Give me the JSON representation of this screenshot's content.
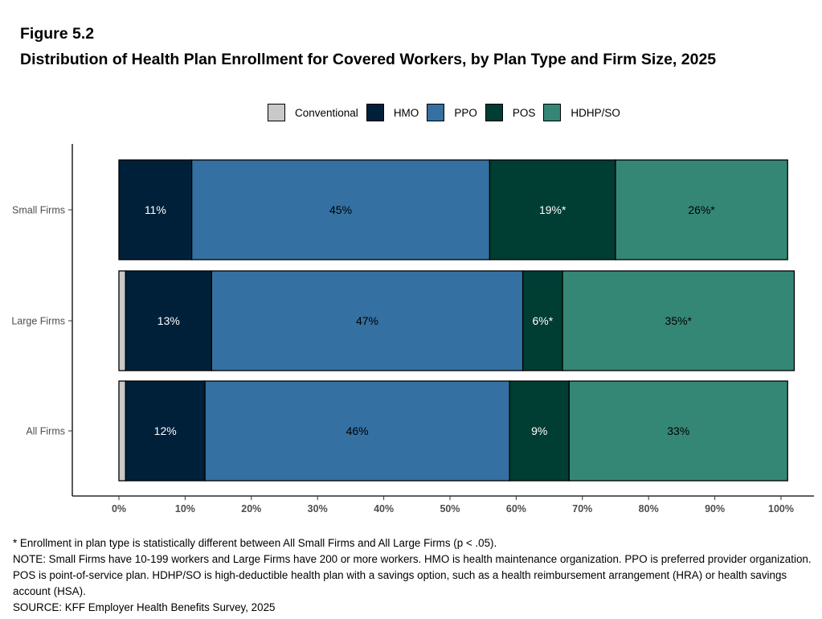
{
  "figure_label": "Figure 5.2",
  "title": "Distribution of Health Plan Enrollment for Covered Workers, by Plan Type and Firm Size, 2025",
  "colors": {
    "Conventional": "#c9c9c9",
    "HMO": "#00203a",
    "PPO": "#3470a1",
    "POS": "#003d33",
    "HDHP/SO": "#348775"
  },
  "chart_data": {
    "type": "bar",
    "orientation": "horizontal",
    "stacked": true,
    "categories": [
      "Small Firms",
      "Large Firms",
      "All Firms"
    ],
    "series": [
      {
        "name": "Conventional",
        "values": [
          0,
          1,
          1
        ],
        "labels": [
          "",
          "",
          ""
        ]
      },
      {
        "name": "HMO",
        "values": [
          11,
          13,
          12
        ],
        "labels": [
          "11%",
          "13%",
          "12%"
        ]
      },
      {
        "name": "PPO",
        "values": [
          45,
          47,
          46
        ],
        "labels": [
          "45%",
          "47%",
          "46%"
        ]
      },
      {
        "name": "POS",
        "values": [
          19,
          6,
          9
        ],
        "labels": [
          "19%*",
          "6%*",
          "9%"
        ]
      },
      {
        "name": "HDHP/SO",
        "values": [
          26,
          35,
          33
        ],
        "labels": [
          "26%*",
          "35%*",
          "33%"
        ]
      }
    ],
    "xlim": [
      0,
      100
    ],
    "xticks": [
      "0%",
      "10%",
      "20%",
      "30%",
      "40%",
      "50%",
      "60%",
      "70%",
      "80%",
      "90%",
      "100%"
    ],
    "legend_position": "top",
    "grid": false
  },
  "footnotes": [
    "* Enrollment in plan type is statistically different between All Small Firms and All Large Firms (p < .05).",
    "NOTE: Small Firms have 10-199 workers and Large Firms have 200 or more workers. HMO is health maintenance organization. PPO is preferred provider organization. POS is point-of-service plan. HDHP/SO is high-deductible health plan with a savings option, such as a health reimbursement arrangement (HRA) or health savings account (HSA).",
    "SOURCE: KFF Employer Health Benefits Survey, 2025"
  ]
}
